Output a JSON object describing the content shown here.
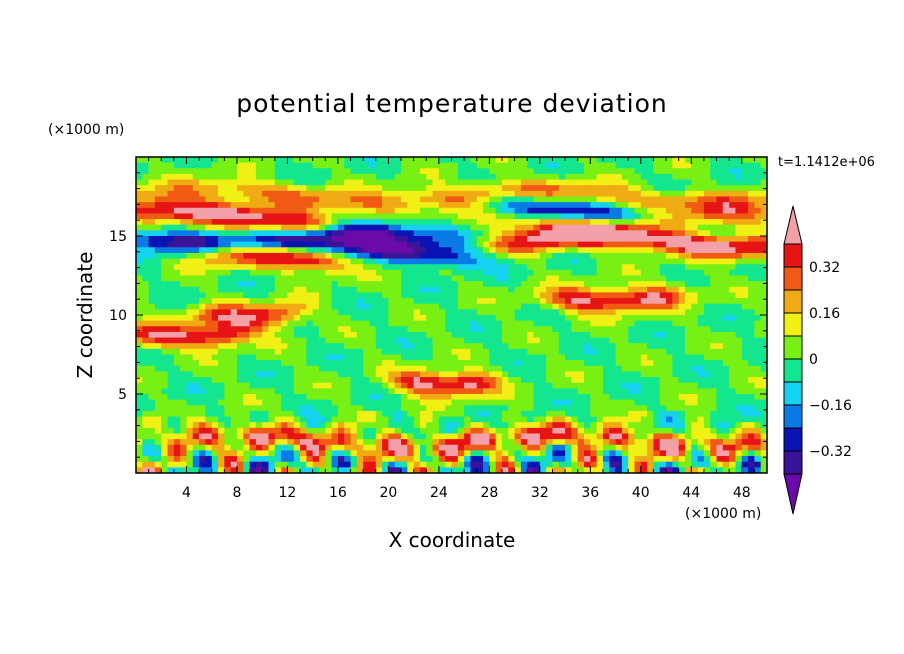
{
  "chart_data": {
    "type": "heatmap",
    "title": "potential temperature deviation",
    "xlabel": "X coordinate",
    "ylabel": "Z coordinate",
    "x_unit": "(×1000 m)",
    "y_unit": "(×1000 m)",
    "time_label": "t=1.1412e+06",
    "xlim": [
      0,
      50
    ],
    "ylim": [
      0,
      20
    ],
    "xticks": [
      "4",
      "8",
      "12",
      "16",
      "20",
      "24",
      "28",
      "32",
      "36",
      "40",
      "44",
      "48"
    ],
    "yticks": [
      "5",
      "10",
      "15"
    ],
    "colorbar": {
      "tick_labels": [
        "0.32",
        "0.16",
        "0",
        "-0.16",
        "-0.32"
      ],
      "levels": [
        -0.4,
        -0.32,
        -0.24,
        -0.16,
        -0.08,
        0,
        0.08,
        0.16,
        0.24,
        0.32,
        0.4
      ],
      "colors": [
        "#6a0aa8",
        "#3a1496",
        "#0a14b4",
        "#0a7ae6",
        "#14d2f0",
        "#14e690",
        "#78f014",
        "#f0f014",
        "#f0aa14",
        "#f05a14",
        "#e61414",
        "#f4a0a8"
      ]
    },
    "bands": [
      {
        "z": 17.5,
        "x": [
          0,
          50
        ],
        "value": 0.24
      },
      {
        "z": 16.2,
        "x": [
          0,
          14
        ],
        "value": 0.45
      },
      {
        "z": 16.0,
        "x": [
          30,
          50
        ],
        "value": 0.3
      },
      {
        "z": 14.8,
        "x": [
          0,
          22
        ],
        "value": -0.4
      },
      {
        "z": 14.0,
        "x": [
          16,
          26
        ],
        "value": -0.35
      },
      {
        "z": 14.6,
        "x": [
          30,
          50
        ],
        "value": 0.45
      },
      {
        "z": 13.5,
        "x": [
          6,
          15
        ],
        "value": 0.45
      },
      {
        "z": 16.5,
        "x": [
          30,
          42
        ],
        "value": -0.35
      },
      {
        "z": 11.3,
        "x": [
          34,
          42
        ],
        "value": 0.42
      },
      {
        "z": 10.3,
        "x": [
          6,
          12
        ],
        "value": 0.35
      },
      {
        "z": 9.0,
        "x": [
          0,
          8
        ],
        "value": 0.4
      },
      {
        "z": 6.0,
        "x": [
          22,
          27
        ],
        "value": 0.45
      },
      {
        "z": 2.0,
        "x": [
          0,
          50
        ],
        "value": 0.3
      }
    ]
  }
}
